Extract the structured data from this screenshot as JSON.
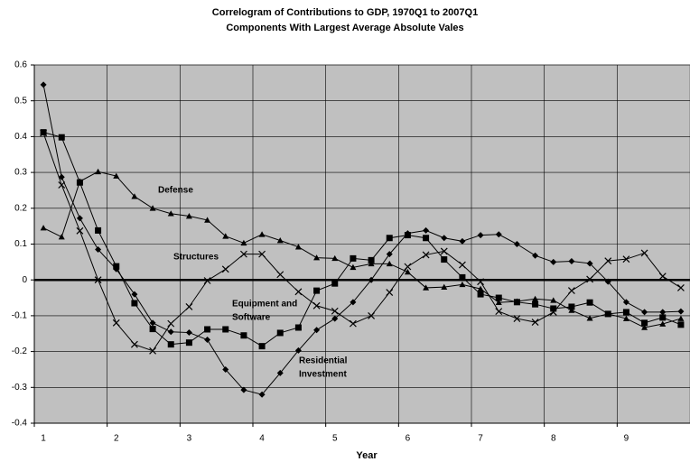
{
  "chart_data": {
    "type": "line",
    "title": "Correlogram of Contributions to GDP, 1970Q1 to 2007Q1",
    "subtitle": "Components With Largest Average Absolute Vales",
    "x_label": "Year",
    "categories": [
      "1",
      null,
      null,
      null,
      "2",
      null,
      null,
      null,
      "3",
      null,
      null,
      null,
      "4",
      null,
      null,
      null,
      "5",
      null,
      null,
      null,
      "6",
      null,
      null,
      null,
      "7",
      null,
      null,
      null,
      "8",
      null,
      null,
      null,
      "9",
      null,
      null,
      null
    ],
    "ylim": [
      -0.4,
      0.6
    ],
    "yticks": [
      -0.4,
      -0.3,
      -0.2,
      -0.1,
      0,
      0.1,
      0.2,
      0.3,
      0.4,
      0.5,
      0.6
    ],
    "grid": true,
    "background": "#c0c0c0",
    "annotations": [
      [
        "Defense"
      ],
      [
        "Structures"
      ],
      [
        "Equipment and",
        "Software"
      ],
      [
        "Residential",
        "Investment"
      ]
    ],
    "series": [
      {
        "name": "Residential Investment",
        "color": "#000000",
        "marker": "diamond",
        "values": [
          0.545,
          0.287,
          0.172,
          0.085,
          0.03,
          -0.04,
          -0.12,
          -0.145,
          -0.147,
          -0.167,
          -0.25,
          -0.307,
          -0.32,
          -0.26,
          -0.197,
          -0.14,
          -0.108,
          -0.062,
          0.0,
          0.072,
          0.13,
          0.138,
          0.117,
          0.108,
          0.125,
          0.127,
          0.1,
          0.068,
          0.05,
          0.052,
          0.046,
          -0.005,
          -0.062,
          -0.09,
          -0.09,
          -0.088
        ]
      },
      {
        "name": "Equipment and Software",
        "color": "#000000",
        "marker": "square",
        "values": [
          0.412,
          0.398,
          0.272,
          0.138,
          0.038,
          -0.065,
          -0.137,
          -0.18,
          -0.175,
          -0.138,
          -0.138,
          -0.155,
          -0.185,
          -0.148,
          -0.133,
          -0.03,
          -0.01,
          0.06,
          0.055,
          0.117,
          0.125,
          0.117,
          0.057,
          0.007,
          -0.04,
          -0.05,
          -0.062,
          -0.068,
          -0.08,
          -0.075,
          -0.063,
          -0.095,
          -0.09,
          -0.12,
          -0.105,
          -0.125
        ]
      },
      {
        "name": "Structures",
        "color": "#000000",
        "marker": "x",
        "values": [
          0.41,
          0.265,
          0.137,
          0.0,
          -0.12,
          -0.18,
          -0.198,
          -0.122,
          -0.075,
          -0.002,
          0.03,
          0.072,
          0.072,
          0.015,
          -0.033,
          -0.072,
          -0.087,
          -0.122,
          -0.1,
          -0.035,
          0.037,
          0.07,
          0.08,
          0.042,
          -0.005,
          -0.088,
          -0.108,
          -0.118,
          -0.09,
          -0.03,
          0.002,
          0.053,
          0.058,
          0.075,
          0.01,
          -0.022
        ]
      },
      {
        "name": "Defense",
        "color": "#000000",
        "marker": "triangle",
        "values": [
          0.145,
          0.12,
          0.275,
          0.302,
          0.29,
          0.233,
          0.2,
          0.185,
          0.178,
          0.167,
          0.122,
          0.103,
          0.127,
          0.11,
          0.092,
          0.062,
          0.06,
          0.035,
          0.045,
          0.045,
          0.022,
          -0.022,
          -0.02,
          -0.013,
          -0.025,
          -0.063,
          -0.06,
          -0.053,
          -0.057,
          -0.085,
          -0.107,
          -0.095,
          -0.108,
          -0.133,
          -0.123,
          -0.108
        ]
      }
    ]
  }
}
